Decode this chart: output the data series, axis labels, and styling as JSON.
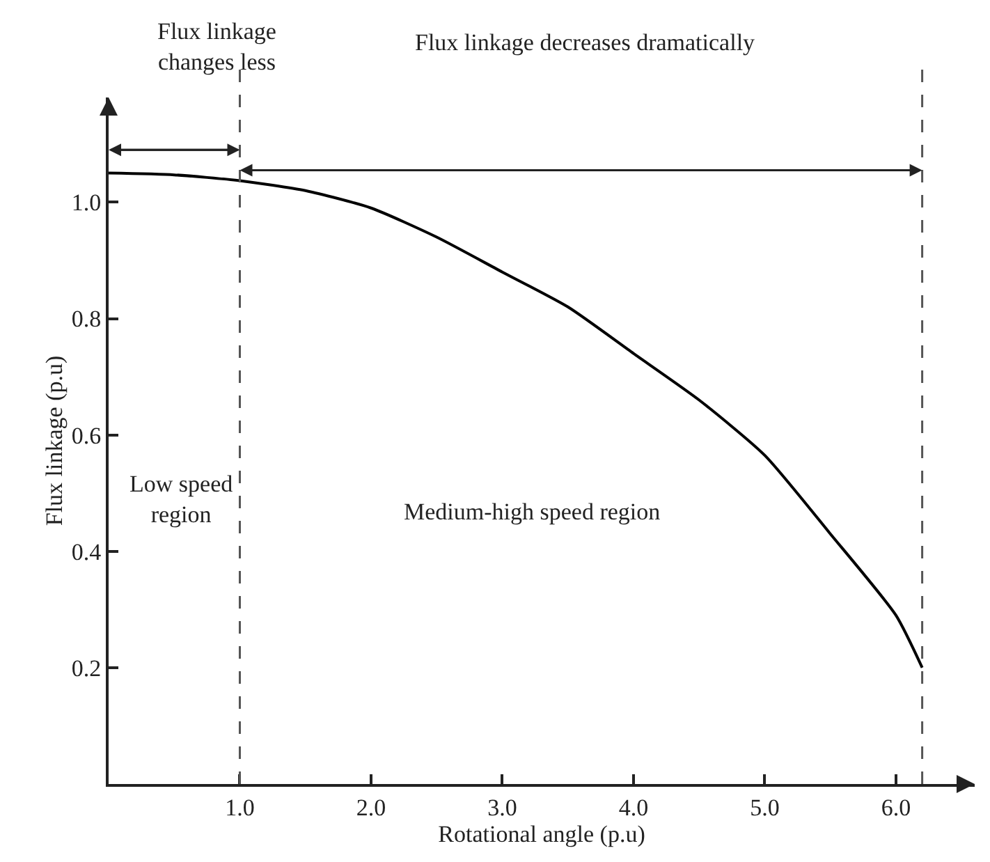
{
  "chart_data": {
    "type": "line",
    "xlabel": "Rotational angle (p.u)",
    "ylabel": "Flux linkage (p.u)",
    "x": [
      0,
      0.5,
      1,
      1.5,
      2,
      2.5,
      3,
      3.5,
      4,
      4.5,
      5,
      5.5,
      6,
      6.2
    ],
    "series": [
      {
        "color": "#000000",
        "values": [
          1.05,
          1.047,
          1.037,
          1.02,
          0.99,
          0.94,
          0.88,
          0.82,
          0.74,
          0.66,
          0.565,
          0.43,
          0.29,
          0.2
        ]
      }
    ],
    "xlim": [
      0,
      6.6
    ],
    "xticks": [
      {
        "value": 1,
        "label": "1.0"
      },
      {
        "value": 2,
        "label": "2.0"
      },
      {
        "value": 3,
        "label": "3.0"
      },
      {
        "value": 4,
        "label": "4.0"
      },
      {
        "value": 5,
        "label": "5.0"
      },
      {
        "value": 6,
        "label": "6.0"
      }
    ],
    "ylim": [
      0,
      1.18
    ],
    "yticks": [
      {
        "value": 0.2,
        "label": "0.2"
      },
      {
        "value": 0.4,
        "label": "0.4"
      },
      {
        "value": 0.6,
        "label": "0.6"
      },
      {
        "value": 0.8,
        "label": "0.8"
      },
      {
        "value": 1.0,
        "label": "1.0"
      }
    ],
    "ref_lines": [
      {
        "axis": "x",
        "value": 1.0,
        "color": "#555555",
        "line_style": "dashed"
      },
      {
        "axis": "x",
        "value": 6.2,
        "color": "#555555",
        "line_style": "dashed"
      }
    ],
    "annotations": [
      "Flux linkage\nchanges less",
      "Flux linkage decreases dramatically",
      "Low speed\nregion",
      "Medium-high speed region"
    ],
    "marker": "none",
    "line_style": "solid"
  }
}
